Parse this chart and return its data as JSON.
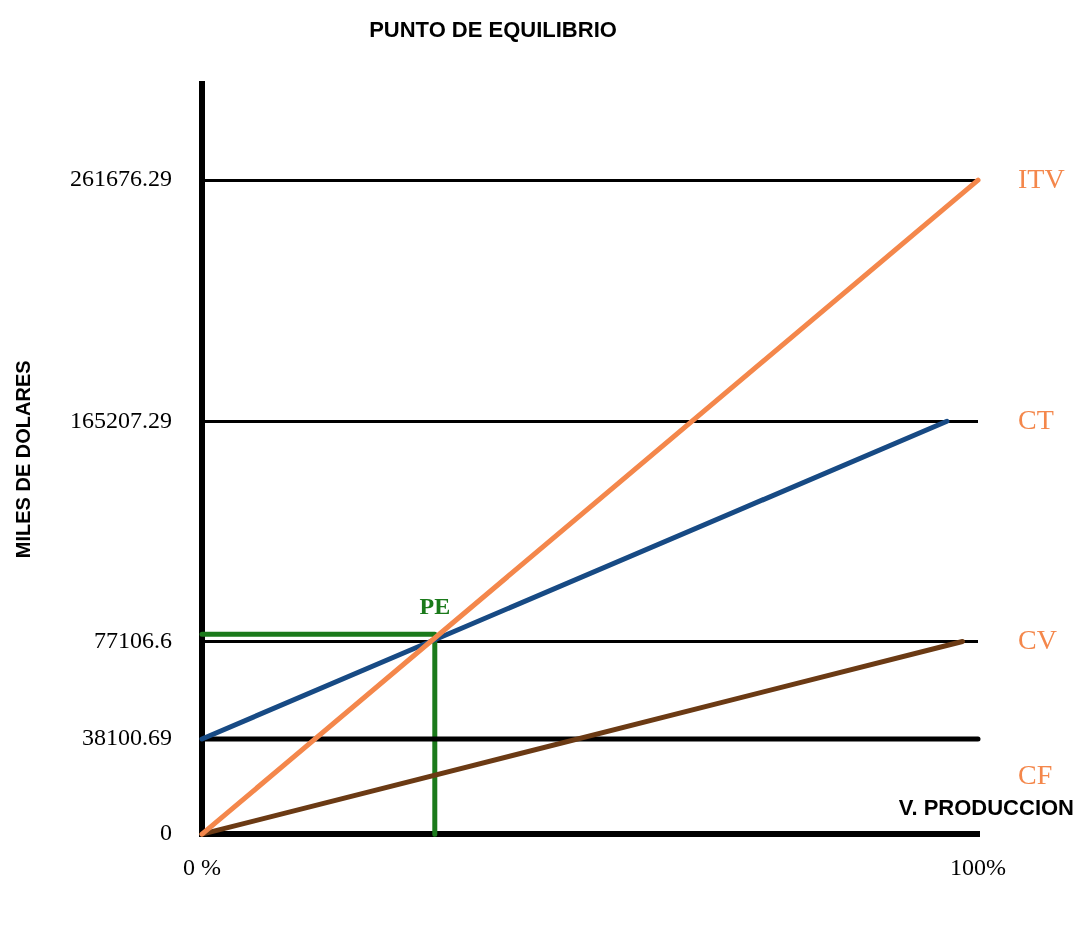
{
  "chart_data": {
    "type": "line",
    "title": "PUNTO DE EQUILIBRIO",
    "xlabel": "V. PRODUCCION",
    "ylabel": "MILES DE DOLARES",
    "xlim": [
      0,
      100
    ],
    "xticks": [
      {
        "value": 0,
        "label": "0 %"
      },
      {
        "value": 100,
        "label": "100%"
      }
    ],
    "ylim": [
      0,
      300000
    ],
    "yticks": [
      0,
      38100.69,
      77106.6,
      165207.29,
      261676.29
    ],
    "grid": "y",
    "legend": false,
    "marker": "none",
    "line_style": "solid",
    "series": [
      {
        "name": "ITV",
        "color": "#f4874b",
        "x": [
          0,
          100
        ],
        "values": [
          0,
          261676
        ]
      },
      {
        "name": "CT",
        "color": "#174a84",
        "x": [
          0,
          96
        ],
        "values": [
          38101,
          165207
        ]
      },
      {
        "name": "CV",
        "color": "#6b3a14",
        "x": [
          0,
          98
        ],
        "values": [
          0,
          77107
        ]
      },
      {
        "name": "CF",
        "color": "#000000",
        "x": [
          0,
          100
        ],
        "values": [
          38101,
          38101
        ]
      },
      {
        "color": "#1b7a1b",
        "x": [
          0,
          30,
          30
        ],
        "values": [
          80000,
          80000,
          0
        ]
      }
    ],
    "annotations": [
      {
        "text": "PE",
        "x": 30,
        "y": 80000
      }
    ]
  }
}
